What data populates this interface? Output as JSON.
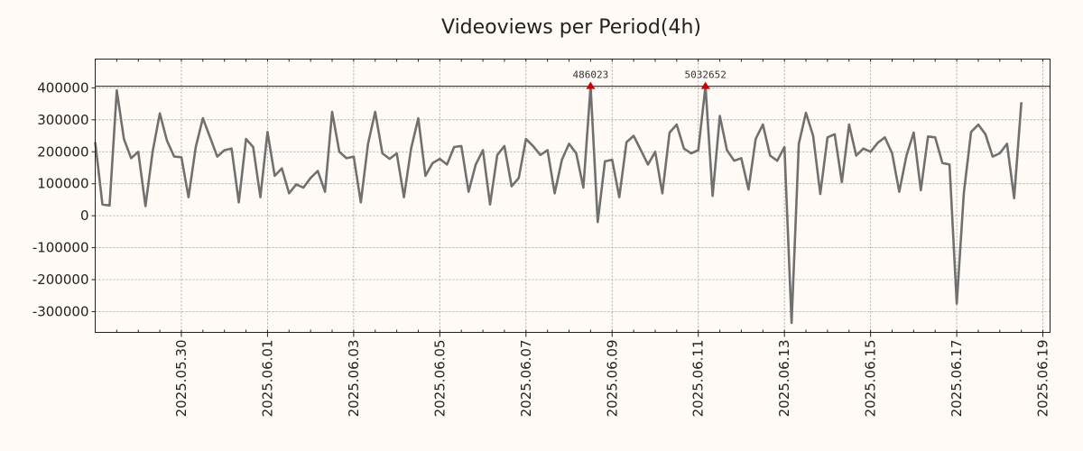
{
  "chart_data": {
    "type": "line",
    "title": "Videoviews per Period(4h)",
    "xlabel": "",
    "ylabel": "",
    "x_start": "2025-05-28 00:00",
    "x_end": "2025-06-19 04:00",
    "period_hours": 4,
    "ylim": [
      -365000,
      490000
    ],
    "y_ticks": [
      400000,
      300000,
      200000,
      100000,
      0,
      -100000,
      -200000,
      -300000
    ],
    "x_tick_labels": [
      "2025.05.30",
      "2025.06.01",
      "2025.06.03",
      "2025.06.05",
      "2025.06.07",
      "2025.06.09",
      "2025.06.11",
      "2025.06.13",
      "2025.06.15",
      "2025.06.17",
      "2025.06.19"
    ],
    "grid": true,
    "reference_line": 405000,
    "series": [
      {
        "color": "#707070",
        "values": [
          230000,
          35000,
          32000,
          392000,
          240000,
          180000,
          200000,
          30000,
          200000,
          320000,
          235000,
          185000,
          183000,
          58000,
          215000,
          305000,
          245000,
          185000,
          205000,
          210000,
          42000,
          240000,
          215000,
          58000,
          262000,
          125000,
          148000,
          70000,
          98000,
          88000,
          118000,
          140000,
          75000,
          325000,
          200000,
          180000,
          185000,
          42000,
          225000,
          325000,
          195000,
          178000,
          195000,
          58000,
          210000,
          305000,
          125000,
          165000,
          178000,
          160000,
          215000,
          218000,
          75000,
          160000,
          205000,
          35000,
          190000,
          218000,
          92000,
          118000,
          240000,
          218000,
          190000,
          205000,
          70000,
          175000,
          225000,
          195000,
          88000,
          405000,
          -20000,
          170000,
          175000,
          58000,
          230000,
          250000,
          205000,
          160000,
          200000,
          70000,
          260000,
          285000,
          210000,
          195000,
          205000,
          405000,
          62000,
          312000,
          205000,
          172000,
          180000,
          82000,
          240000,
          285000,
          188000,
          172000,
          215000,
          -335000,
          225000,
          322000,
          250000,
          68000,
          245000,
          255000,
          105000,
          285000,
          188000,
          210000,
          200000,
          228000,
          245000,
          195000,
          75000,
          188000,
          260000,
          80000,
          248000,
          245000,
          165000,
          160000,
          -275000,
          72000,
          262000,
          285000,
          255000,
          185000,
          195000,
          225000,
          55000,
          355000
        ]
      }
    ],
    "annotations": [
      {
        "label": "486023",
        "x_index": 69,
        "y": 405000,
        "color": "#cc0000"
      },
      {
        "label": "5032652",
        "x_index": 85,
        "y": 405000,
        "color": "#cc0000"
      }
    ]
  }
}
